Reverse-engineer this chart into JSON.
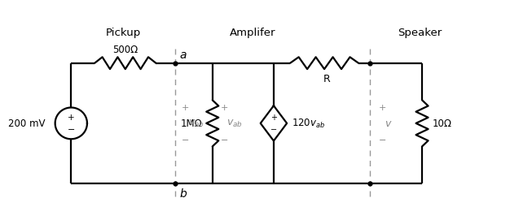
{
  "bg_color": "#ffffff",
  "line_color": "#000000",
  "dashed_color": "#999999",
  "title_pickup": "Pickup",
  "title_amplifier": "Amplifer",
  "title_speaker": "Speaker",
  "label_500": "500Ω",
  "label_200mV": "200 mV",
  "label_1MO": "1MΩ",
  "label_vab_left": "$v_{ab}$",
  "label_vab_right": "$v_{ab}$",
  "label_120vab": "120$v_{ab}$",
  "label_R": "R",
  "label_v": "$v$",
  "label_10": "10Ω",
  "label_a": "$a$",
  "label_b": "$b$",
  "fig_width": 5.9,
  "fig_height": 2.62,
  "lw": 1.6
}
